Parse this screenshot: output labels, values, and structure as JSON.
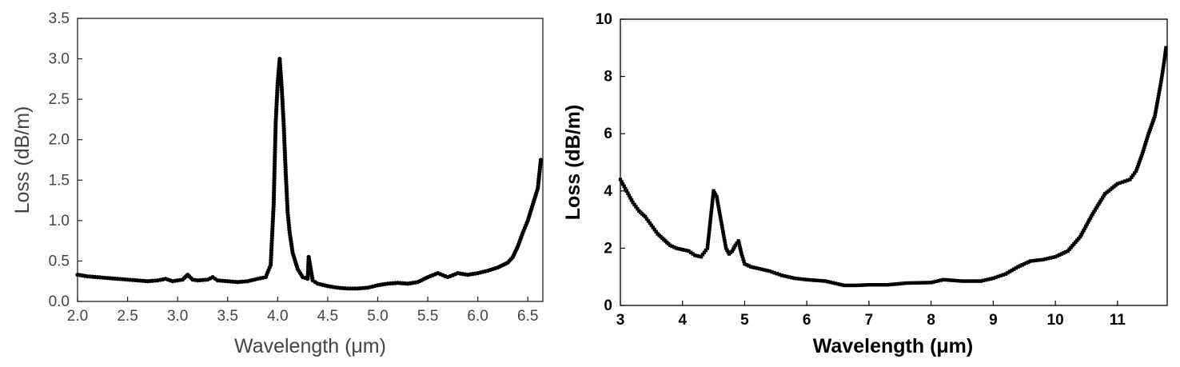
{
  "chart_data": [
    {
      "type": "scatter",
      "title": "",
      "xlabel": "Wavelength (μm)",
      "ylabel": "Loss (dB/m)",
      "xlim": [
        2.0,
        6.65
      ],
      "ylim": [
        0.0,
        3.5
      ],
      "xticks": [
        {
          "v": 2.0,
          "label": "2.0"
        },
        {
          "v": 2.5,
          "label": "2.5"
        },
        {
          "v": 3.0,
          "label": "3.0"
        },
        {
          "v": 3.5,
          "label": "3.5"
        },
        {
          "v": 4.0,
          "label": "4.0"
        },
        {
          "v": 4.5,
          "label": "4.5"
        },
        {
          "v": 5.0,
          "label": "5.0"
        },
        {
          "v": 5.5,
          "label": "5.5"
        },
        {
          "v": 6.0,
          "label": "6.0"
        },
        {
          "v": 6.5,
          "label": "6.5"
        }
      ],
      "yticks": [
        {
          "v": 0.0,
          "label": "0.0"
        },
        {
          "v": 0.5,
          "label": "0.5"
        },
        {
          "v": 1.0,
          "label": "1.0"
        },
        {
          "v": 1.5,
          "label": "1.5"
        },
        {
          "v": 2.0,
          "label": "2.0"
        },
        {
          "v": 2.5,
          "label": "2.5"
        },
        {
          "v": 3.0,
          "label": "3.0"
        },
        {
          "v": 3.5,
          "label": "3.5"
        }
      ],
      "grid": false,
      "marker_color": "#000000",
      "series": [
        {
          "x": [
            2.0,
            2.1,
            2.2,
            2.3,
            2.4,
            2.5,
            2.6,
            2.7,
            2.8,
            2.88,
            2.95,
            3.05,
            3.1,
            3.15,
            3.2,
            3.3,
            3.35,
            3.4,
            3.5,
            3.6,
            3.7,
            3.8,
            3.88,
            3.93,
            3.96,
            3.98,
            4.0,
            4.02,
            4.04,
            4.06,
            4.08,
            4.1,
            4.12,
            4.15,
            4.2,
            4.25,
            4.3,
            4.31,
            4.35,
            4.4,
            4.5,
            4.6,
            4.7,
            4.8,
            4.9,
            5.0,
            5.1,
            5.2,
            5.3,
            5.4,
            5.5,
            5.6,
            5.7,
            5.8,
            5.9,
            6.0,
            6.1,
            6.2,
            6.3,
            6.35,
            6.4,
            6.45,
            6.5,
            6.55,
            6.6,
            6.63
          ],
          "y": [
            0.33,
            0.31,
            0.3,
            0.29,
            0.28,
            0.27,
            0.26,
            0.25,
            0.26,
            0.28,
            0.25,
            0.27,
            0.33,
            0.27,
            0.26,
            0.27,
            0.3,
            0.26,
            0.25,
            0.24,
            0.25,
            0.28,
            0.3,
            0.45,
            1.2,
            2.2,
            2.7,
            3.0,
            2.65,
            2.2,
            1.6,
            1.1,
            0.85,
            0.6,
            0.4,
            0.3,
            0.28,
            0.55,
            0.26,
            0.22,
            0.19,
            0.17,
            0.16,
            0.16,
            0.17,
            0.2,
            0.22,
            0.23,
            0.22,
            0.24,
            0.3,
            0.35,
            0.3,
            0.35,
            0.33,
            0.35,
            0.38,
            0.42,
            0.48,
            0.55,
            0.68,
            0.85,
            1.0,
            1.2,
            1.4,
            1.75
          ]
        }
      ]
    },
    {
      "type": "scatter",
      "title": "",
      "xlabel": "Wavelength (μm)",
      "ylabel": "Loss (dB/m)",
      "xlim": [
        3.0,
        11.8
      ],
      "ylim": [
        0,
        10
      ],
      "xticks": [
        {
          "v": 3,
          "label": "3"
        },
        {
          "v": 4,
          "label": "4"
        },
        {
          "v": 5,
          "label": "5"
        },
        {
          "v": 6,
          "label": "6"
        },
        {
          "v": 7,
          "label": "7"
        },
        {
          "v": 8,
          "label": "8"
        },
        {
          "v": 9,
          "label": "9"
        },
        {
          "v": 10,
          "label": "10"
        },
        {
          "v": 11,
          "label": "11"
        }
      ],
      "yticks": [
        {
          "v": 0,
          "label": "0"
        },
        {
          "v": 2,
          "label": "2"
        },
        {
          "v": 4,
          "label": "4"
        },
        {
          "v": 6,
          "label": "6"
        },
        {
          "v": 8,
          "label": "8"
        },
        {
          "v": 10,
          "label": "10"
        }
      ],
      "grid": false,
      "marker_color": "#000000",
      "series": [
        {
          "x": [
            3.0,
            3.1,
            3.2,
            3.3,
            3.4,
            3.5,
            3.6,
            3.7,
            3.8,
            3.9,
            4.0,
            4.1,
            4.2,
            4.3,
            4.4,
            4.45,
            4.5,
            4.55,
            4.6,
            4.65,
            4.7,
            4.75,
            4.8,
            4.85,
            4.9,
            4.95,
            5.0,
            5.1,
            5.2,
            5.4,
            5.6,
            5.8,
            6.0,
            6.3,
            6.5,
            6.6,
            6.8,
            7.0,
            7.3,
            7.6,
            8.0,
            8.2,
            8.5,
            8.8,
            9.0,
            9.2,
            9.4,
            9.6,
            9.8,
            10.0,
            10.2,
            10.4,
            10.6,
            10.8,
            11.0,
            11.2,
            11.3,
            11.4,
            11.5,
            11.6,
            11.65,
            11.7,
            11.75,
            11.78
          ],
          "y": [
            4.4,
            4.0,
            3.6,
            3.3,
            3.1,
            2.8,
            2.5,
            2.3,
            2.1,
            2.0,
            1.95,
            1.9,
            1.75,
            1.7,
            2.0,
            3.0,
            4.0,
            3.8,
            3.2,
            2.6,
            2.0,
            1.8,
            1.9,
            2.1,
            2.25,
            1.8,
            1.45,
            1.35,
            1.3,
            1.2,
            1.05,
            0.95,
            0.9,
            0.85,
            0.75,
            0.7,
            0.7,
            0.72,
            0.72,
            0.78,
            0.8,
            0.9,
            0.85,
            0.85,
            0.95,
            1.1,
            1.35,
            1.55,
            1.6,
            1.7,
            1.9,
            2.4,
            3.2,
            3.9,
            4.25,
            4.4,
            4.7,
            5.3,
            6.0,
            6.6,
            7.2,
            7.8,
            8.5,
            9.0
          ]
        }
      ]
    }
  ]
}
